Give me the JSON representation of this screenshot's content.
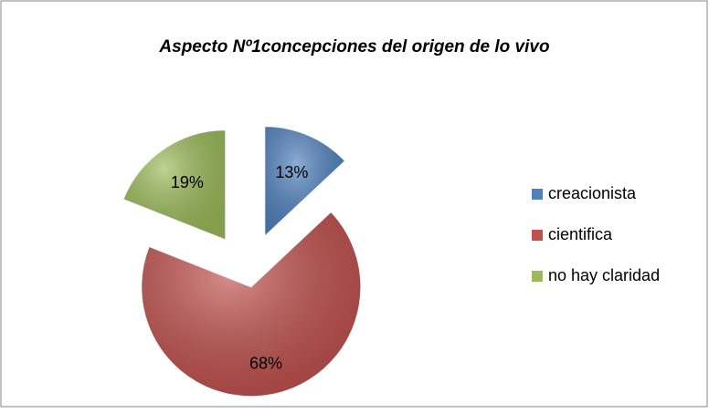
{
  "chart_data": {
    "type": "pie",
    "title": "Aspecto Nº1concepciones del origen de lo vivo",
    "categories": [
      "creacionista",
      "cientifica",
      "no hay claridad"
    ],
    "values": [
      13,
      68,
      19
    ],
    "value_labels": [
      "13%",
      "68%",
      "19%"
    ],
    "colors": [
      "#4f81bd",
      "#c0504d",
      "#9bbb59"
    ],
    "legend": "right"
  }
}
